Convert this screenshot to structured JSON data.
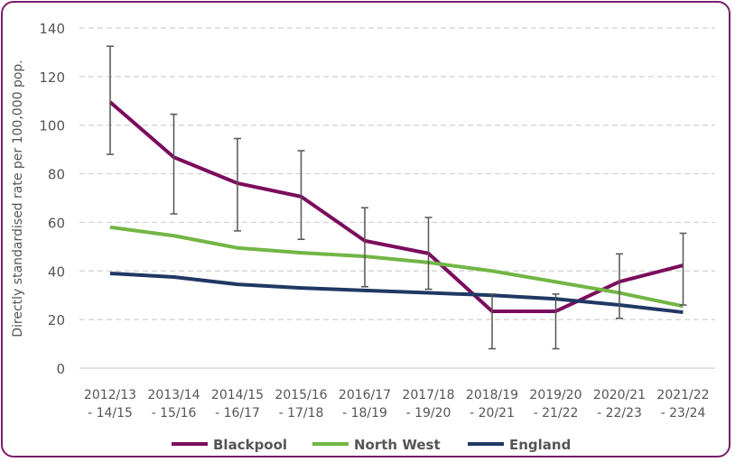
{
  "chart_data": {
    "type": "line",
    "title": "",
    "xlabel": "",
    "ylabel": "Directly standardised rate per 100,000 pop.",
    "ylim": [
      0,
      140
    ],
    "yticks": [
      0,
      20,
      40,
      60,
      80,
      100,
      120,
      140
    ],
    "grid": true,
    "legend_position": "bottom",
    "categories": [
      [
        "2012/13",
        "- 14/15"
      ],
      [
        "2013/14",
        "- 15/16"
      ],
      [
        "2014/15",
        "- 16/17"
      ],
      [
        "2015/16",
        "- 17/18"
      ],
      [
        "2016/17",
        "- 18/19"
      ],
      [
        "2017/18",
        "- 19/20"
      ],
      [
        "2018/19",
        "- 20/21"
      ],
      [
        "2019/20",
        "- 21/22"
      ],
      [
        "2020/21",
        "- 22/23"
      ],
      [
        "2021/22",
        "- 23/24"
      ]
    ],
    "series": [
      {
        "name": "Blackpool",
        "color": "#7b0c5d",
        "values": [
          109.5,
          86.8,
          76.1,
          70.6,
          52.4,
          47.2,
          23.4,
          23.4,
          35.6,
          42.3
        ],
        "ci_upper": [
          132.5,
          104.5,
          94.5,
          89.5,
          66,
          62,
          30.5,
          30.5,
          47,
          55.5
        ],
        "ci_lower": [
          88,
          63.5,
          56.5,
          53,
          33.5,
          32.5,
          8,
          8,
          20.5,
          26
        ]
      },
      {
        "name": "North West",
        "color": "#72b644",
        "values": [
          58,
          54.5,
          49.5,
          47.5,
          46,
          43.5,
          40,
          35.5,
          31,
          25.5
        ]
      },
      {
        "name": "England",
        "color": "#1f3864",
        "values": [
          39,
          37.5,
          34.5,
          33,
          32,
          31,
          30,
          28.5,
          26,
          23
        ]
      }
    ]
  }
}
